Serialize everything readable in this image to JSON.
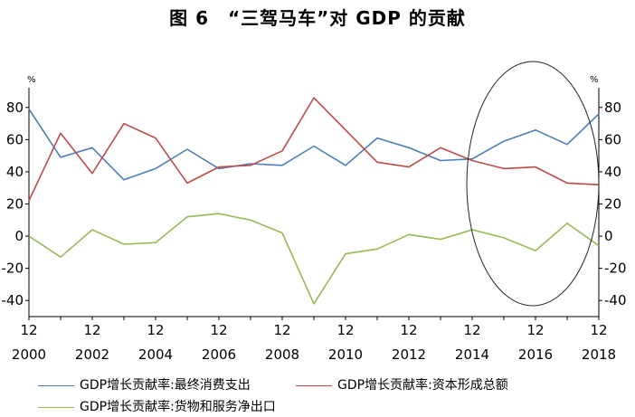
{
  "chart_data": {
    "type": "line",
    "title": "图 6　“三驾马车”对 GDP 的贡献",
    "unit_left": "%",
    "unit_right": "%",
    "x": [
      2000,
      2001,
      2002,
      2003,
      2004,
      2005,
      2006,
      2007,
      2008,
      2009,
      2010,
      2011,
      2012,
      2013,
      2014,
      2015,
      2016,
      2017,
      2018
    ],
    "x_month_label": "12",
    "x_year_ticks": [
      "2000",
      "2002",
      "2004",
      "2006",
      "2008",
      "2010",
      "2012",
      "2014",
      "2016",
      "2018"
    ],
    "ylim": [
      -50,
      90
    ],
    "y_ticks": [
      "80",
      "60",
      "40",
      "20",
      "0",
      "-20",
      "-40"
    ],
    "series": [
      {
        "name": "GDP增长贡献率:最终消费支出",
        "color": "#4a7ebb",
        "values": [
          79,
          49,
          55,
          35,
          42,
          54,
          42,
          45,
          44,
          56,
          44,
          61,
          55,
          47,
          48,
          59,
          66,
          57,
          76
        ]
      },
      {
        "name": "GDP增长贡献率:资本形成总额",
        "color": "#be4b48",
        "values": [
          22,
          64,
          39,
          70,
          61,
          33,
          43,
          44,
          53,
          86,
          66,
          46,
          43,
          55,
          47,
          42,
          43,
          33,
          32
        ]
      },
      {
        "name": "GDP增长贡献率:货物和服务净出口",
        "color": "#98b954",
        "values": [
          0,
          -13,
          4,
          -5,
          -4,
          12,
          14,
          10,
          2,
          -42,
          -11,
          -8,
          1,
          -2,
          4,
          -1,
          -9,
          8,
          -6
        ]
      }
    ],
    "annotation": "ellipse around 2014-2018",
    "legend_position": "bottom",
    "grid": false
  }
}
